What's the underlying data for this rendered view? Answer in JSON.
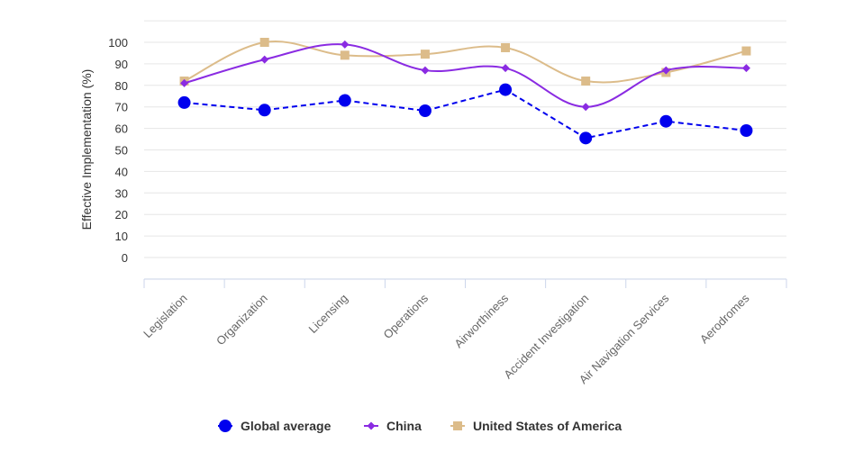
{
  "chart_data": {
    "type": "line",
    "title": "",
    "xlabel": "",
    "ylabel": "Effective Implementation (%)",
    "ylim": [
      -10,
      110
    ],
    "yticks": [
      0,
      10,
      20,
      30,
      40,
      50,
      60,
      70,
      80,
      90,
      100
    ],
    "categories": [
      "Legislation",
      "Organization",
      "Licensing",
      "Operations",
      "Airworthiness",
      "Accident Investigation",
      "Air Navigation Services",
      "Aerodromes"
    ],
    "grid": true,
    "legend_position": "bottom-center",
    "series": [
      {
        "name": "Global average",
        "values": [
          72,
          68.5,
          73,
          68.2,
          78,
          55.5,
          63.3,
          59
        ],
        "color": "#0000ee",
        "line_style": "dashed",
        "marker": "circle"
      },
      {
        "name": "China",
        "values": [
          81,
          92,
          99,
          87,
          88,
          70,
          87,
          88
        ],
        "color": "#8a2be2",
        "line_style": "solid-smooth",
        "marker": "diamond"
      },
      {
        "name": "United States of America",
        "values": [
          82,
          100,
          94,
          94.5,
          97.5,
          82,
          86,
          96
        ],
        "color": "#dcbc8a",
        "line_style": "solid-smooth",
        "marker": "square"
      }
    ]
  }
}
